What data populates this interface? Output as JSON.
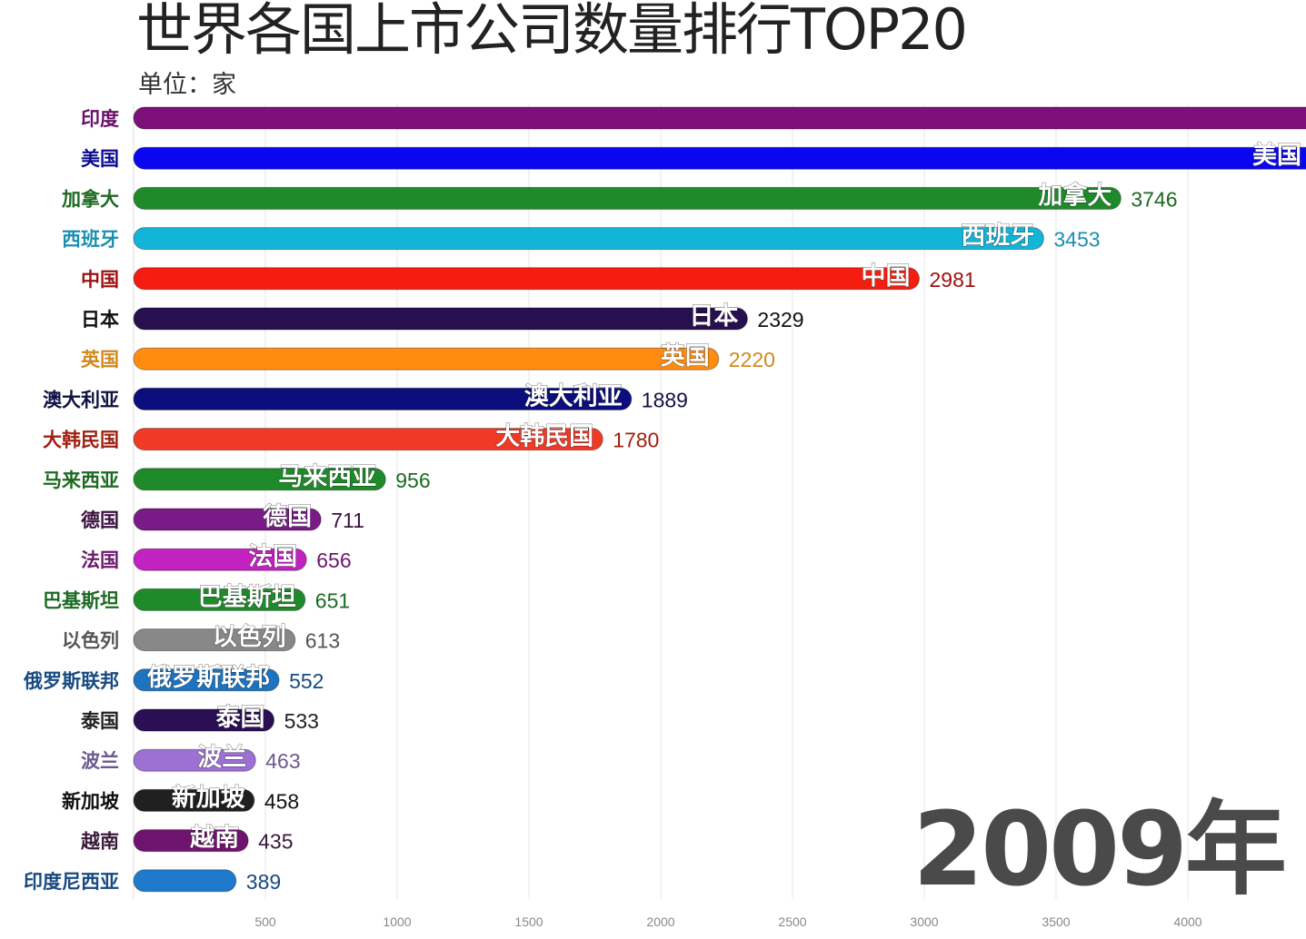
{
  "chart_data": {
    "type": "bar",
    "orientation": "horizontal",
    "title": "世界各国上市公司数量排行TOP20",
    "subtitle": "单位：家",
    "year_label": "2009年",
    "xlim": [
      0,
      4450
    ],
    "grid": true,
    "x_ticks": [
      500,
      1000,
      1500,
      2000,
      2500,
      3000,
      3500,
      4000
    ],
    "categories": [
      "印度",
      "美国",
      "加拿大",
      "西班牙",
      "中国",
      "日本",
      "英国",
      "澳大利亚",
      "大韩民国",
      "马来西亚",
      "德国",
      "法国",
      "巴基斯坦",
      "以色列",
      "俄罗斯联邦",
      "泰国",
      "波兰",
      "新加坡",
      "越南",
      "印度尼西亚"
    ],
    "values": [
      null,
      null,
      3746,
      3453,
      2981,
      2329,
      2220,
      1889,
      1780,
      956,
      711,
      656,
      651,
      613,
      552,
      533,
      463,
      458,
      435,
      389
    ],
    "bar_labels": [
      "",
      "美国",
      "加拿大",
      "西班牙",
      "中国",
      "日本",
      "英国",
      "澳大利亚",
      "大韩民国",
      "马来西亚",
      "德国",
      "法国",
      "巴基斯坦",
      "以色列",
      "俄罗斯联邦",
      "泰国",
      "波兰",
      "新加坡",
      "越南",
      ""
    ],
    "colors": [
      "#7d0f7a",
      "#0a07f0",
      "#1f8a2a",
      "#12b4d8",
      "#f51d10",
      "#26104f",
      "#ff8c0f",
      "#0b0e7c",
      "#f03a26",
      "#1f8a2a",
      "#7a1a88",
      "#c222c0",
      "#1f8a2a",
      "#888888",
      "#1c73c0",
      "#2a0f55",
      "#9d70d4",
      "#202020",
      "#6e146e",
      "#1f7acc"
    ],
    "label_colors": [
      "#6a0f6a",
      "#0a0a90",
      "#1c6a22",
      "#1a8fb0",
      "#a01010",
      "#111111",
      "#d08a1a",
      "#111144",
      "#a02010",
      "#1c6a22",
      "#3a1040",
      "#6a1a6a",
      "#1c6a22",
      "#555555",
      "#174a80",
      "#222222",
      "#6a5a90",
      "#111111",
      "#3a1a3a",
      "#174a80"
    ]
  }
}
